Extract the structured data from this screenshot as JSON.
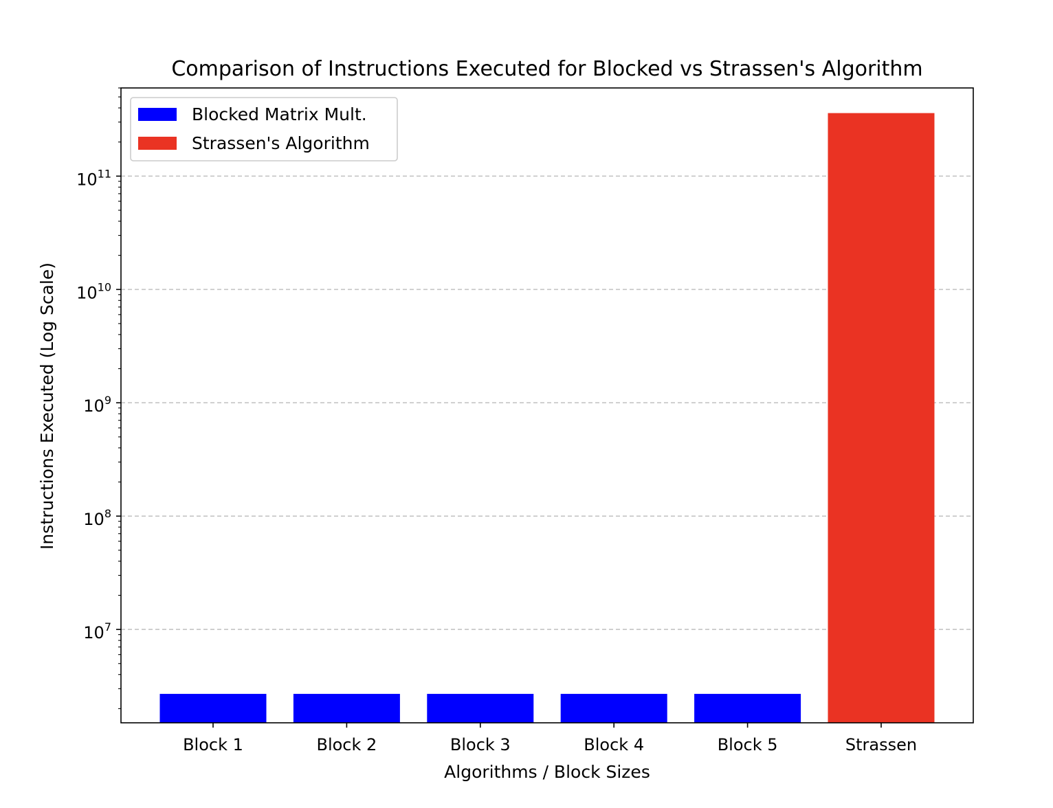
{
  "chart_data": {
    "type": "bar",
    "title": "Comparison of Instructions Executed for Blocked vs Strassen's Algorithm",
    "xlabel": "Algorithms / Block Sizes",
    "ylabel": "Instructions Executed (Log Scale)",
    "yscale": "log",
    "ylim": [
      1500000,
      600000000000
    ],
    "grid": "y-major-dashed",
    "legend_placement": "top-left",
    "categories": [
      "Block 1",
      "Block 2",
      "Block 3",
      "Block 4",
      "Block 5",
      "Strassen"
    ],
    "values": [
      2700000,
      2700000,
      2700000,
      2700000,
      2700000,
      360000000000
    ],
    "bar_series": [
      "blocked",
      "blocked",
      "blocked",
      "blocked",
      "blocked",
      "strassen"
    ],
    "series": [
      {
        "key": "blocked",
        "name": "Blocked Matrix Mult.",
        "color": "#0000ff"
      },
      {
        "key": "strassen",
        "name": "Strassen's Algorithm",
        "color": "#ea3323"
      }
    ],
    "y_ticks": [
      {
        "base": "10",
        "exp": "7",
        "value": 10000000
      },
      {
        "base": "10",
        "exp": "8",
        "value": 100000000
      },
      {
        "base": "10",
        "exp": "9",
        "value": 1000000000
      },
      {
        "base": "10",
        "exp": "10",
        "value": 10000000000
      },
      {
        "base": "10",
        "exp": "11",
        "value": 100000000000
      }
    ]
  }
}
